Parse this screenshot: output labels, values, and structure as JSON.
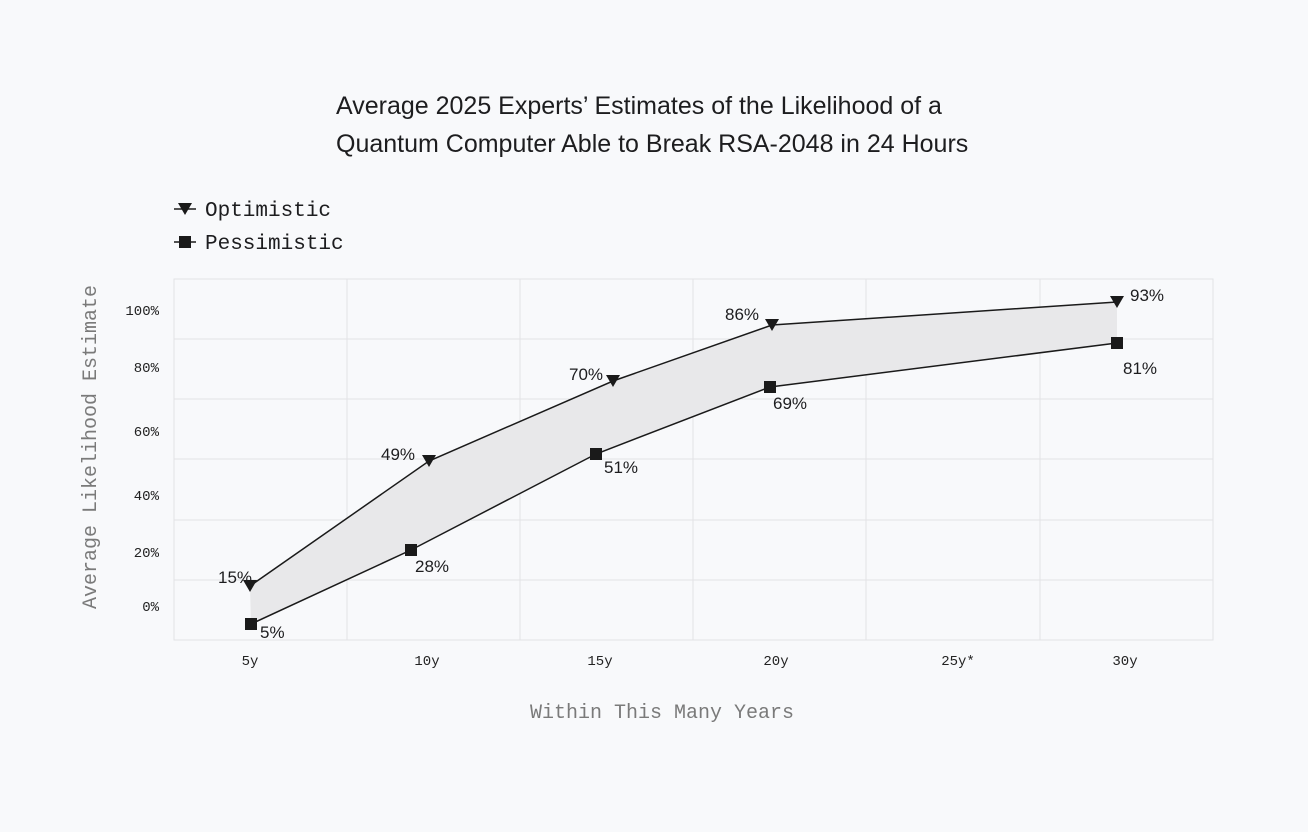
{
  "colors": {
    "background": "#f8f9fb",
    "plot_background": "#f8f9fb",
    "grid": "#e2e3e6",
    "band_fill": "#e8e8ea",
    "line": "#1a1a1a",
    "text": "#1d1d1f",
    "axis_label": "#7a7a7a"
  },
  "chart_data": {
    "type": "line",
    "title_lines": [
      "Average 2025 Experts’ Estimates of the Likelihood of a",
      "Quantum Computer Able to Break RSA-2048 in 24 Hours"
    ],
    "xlabel": "Within This Many Years",
    "ylabel": "Average Likelihood Estimate",
    "categories": [
      "5y",
      "10y",
      "15y",
      "20y",
      "25y*",
      "30y"
    ],
    "y_ticks": [
      "0%",
      "20%",
      "40%",
      "60%",
      "80%",
      "100%"
    ],
    "grid": true,
    "legend_position": "top-left",
    "band_between_series": true,
    "series": [
      {
        "name": "Optimistic",
        "marker": "triangle-down",
        "x": [
          "5y",
          "10y",
          "15y",
          "20y",
          "30y"
        ],
        "values": [
          15,
          49,
          70,
          86,
          93
        ],
        "labels": [
          "15%",
          "49%",
          "70%",
          "86%",
          "93%"
        ]
      },
      {
        "name": "Pessimistic",
        "marker": "square",
        "x": [
          "5y",
          "10y",
          "15y",
          "20y",
          "30y"
        ],
        "values": [
          5,
          28,
          51,
          69,
          81
        ],
        "labels": [
          "5%",
          "28%",
          "51%",
          "69%",
          "81%"
        ]
      }
    ]
  }
}
